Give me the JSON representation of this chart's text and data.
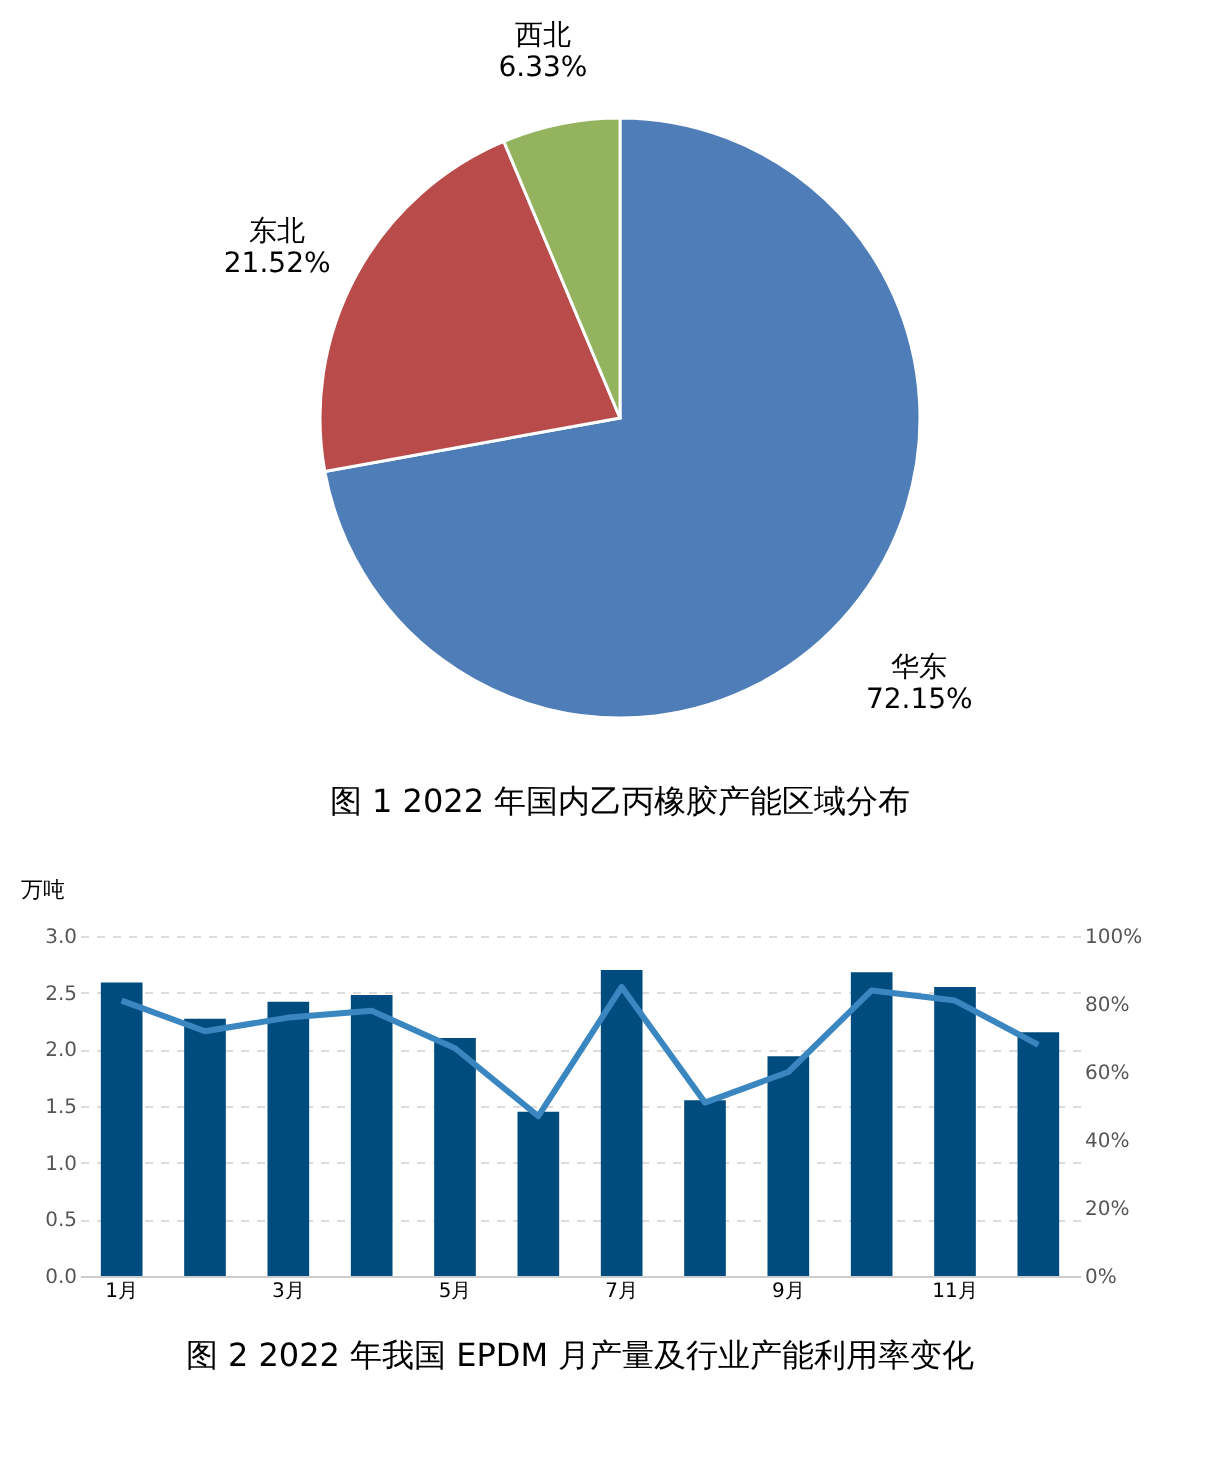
{
  "chart_data": [
    {
      "type": "pie",
      "title": "图 1  2022 年国内乙丙橡胶产能区域分布",
      "categories": [
        "华东",
        "东北",
        "西北"
      ],
      "values": [
        72.15,
        21.52,
        6.33
      ],
      "value_labels": [
        "72.15%",
        "21.52%",
        "6.33%"
      ],
      "colors": [
        "#4f7db8",
        "#b94b4b",
        "#93b35f"
      ],
      "legend": false
    },
    {
      "type": "bar",
      "title": "图 2  2022 年我国 EPDM 月产量及行业产能利用率变化",
      "ylabel": "万吨",
      "categories": [
        "1月",
        null,
        "3月",
        null,
        "5月",
        null,
        "7月",
        null,
        "9月",
        null,
        "11月",
        null
      ],
      "series": [
        {
          "type": "bar",
          "color": "#004c7f",
          "values": [
            2.59,
            2.27,
            2.42,
            2.48,
            2.1,
            1.45,
            2.7,
            1.55,
            1.94,
            2.68,
            2.55,
            2.15
          ]
        },
        {
          "type": "line",
          "axis": "y2",
          "color": "#3a86c0",
          "values": [
            81,
            72,
            76,
            78,
            67,
            47,
            85,
            51,
            60,
            84,
            81,
            68
          ]
        }
      ],
      "ylim": [
        0,
        3
      ],
      "yticks": [
        {
          "value": 0,
          "label": "0.0"
        },
        {
          "value": 0.5,
          "label": "0.5"
        },
        {
          "value": 1,
          "label": "1.0"
        },
        {
          "value": 1.5,
          "label": "1.5"
        },
        {
          "value": 2,
          "label": "2.0"
        },
        {
          "value": 2.5,
          "label": "2.5"
        },
        {
          "value": 3,
          "label": "3.0"
        }
      ],
      "y2lim": [
        0,
        100
      ],
      "y2ticks": [
        {
          "value": 0,
          "label": "0%"
        },
        {
          "value": 20,
          "label": "20%"
        },
        {
          "value": 40,
          "label": "40%"
        },
        {
          "value": 60,
          "label": "60%"
        },
        {
          "value": 80,
          "label": "80%"
        },
        {
          "value": 100,
          "label": "100%"
        }
      ],
      "grid": "y",
      "legend": false,
      "marker": "none",
      "line_style": "solid"
    }
  ]
}
